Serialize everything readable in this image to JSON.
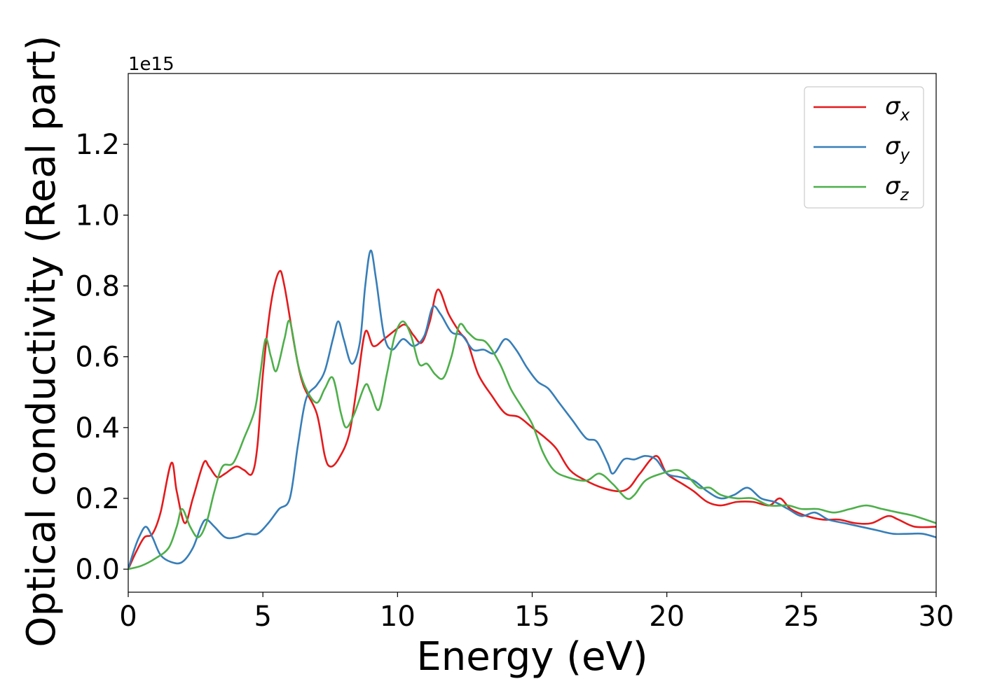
{
  "chart_data": {
    "type": "line",
    "xlabel": "Energy (eV)",
    "ylabel": "Optical conductivity (Real part)",
    "y_offset_label": "1e15",
    "xlim": [
      0,
      30
    ],
    "ylim": [
      -0.065,
      1.4
    ],
    "x_ticks": [
      0,
      5,
      10,
      15,
      20,
      25,
      30
    ],
    "x_tick_labels": [
      "0",
      "5",
      "10",
      "15",
      "20",
      "25",
      "30"
    ],
    "y_ticks": [
      0.0,
      0.2,
      0.4,
      0.6,
      0.8,
      1.0,
      1.2
    ],
    "y_tick_labels": [
      "0.0",
      "0.2",
      "0.4",
      "0.6",
      "0.8",
      "1.0",
      "1.2"
    ],
    "grid": false,
    "legend_position": "top-right",
    "series": [
      {
        "name": "σx",
        "legend_symbol": "σ",
        "legend_subscript": "x",
        "color": "#e41a1c",
        "points": [
          [
            0,
            0
          ],
          [
            0.3,
            0.05
          ],
          [
            0.6,
            0.09
          ],
          [
            0.9,
            0.1
          ],
          [
            1.2,
            0.16
          ],
          [
            1.6,
            0.3
          ],
          [
            1.8,
            0.22
          ],
          [
            2.1,
            0.13
          ],
          [
            2.4,
            0.2
          ],
          [
            2.8,
            0.3
          ],
          [
            3.0,
            0.29
          ],
          [
            3.3,
            0.26
          ],
          [
            3.6,
            0.27
          ],
          [
            4.0,
            0.29
          ],
          [
            4.3,
            0.28
          ],
          [
            4.6,
            0.27
          ],
          [
            4.8,
            0.35
          ],
          [
            5.0,
            0.55
          ],
          [
            5.3,
            0.75
          ],
          [
            5.6,
            0.84
          ],
          [
            5.8,
            0.8
          ],
          [
            6.2,
            0.62
          ],
          [
            6.5,
            0.52
          ],
          [
            7.0,
            0.44
          ],
          [
            7.3,
            0.32
          ],
          [
            7.5,
            0.29
          ],
          [
            7.8,
            0.31
          ],
          [
            8.2,
            0.38
          ],
          [
            8.5,
            0.52
          ],
          [
            8.8,
            0.67
          ],
          [
            9.1,
            0.63
          ],
          [
            9.5,
            0.65
          ],
          [
            10.0,
            0.68
          ],
          [
            10.3,
            0.69
          ],
          [
            10.6,
            0.66
          ],
          [
            10.9,
            0.64
          ],
          [
            11.2,
            0.7
          ],
          [
            11.5,
            0.79
          ],
          [
            11.9,
            0.72
          ],
          [
            12.3,
            0.67
          ],
          [
            12.6,
            0.64
          ],
          [
            13.0,
            0.55
          ],
          [
            13.5,
            0.49
          ],
          [
            14.0,
            0.44
          ],
          [
            14.5,
            0.43
          ],
          [
            15.0,
            0.4
          ],
          [
            15.5,
            0.37
          ],
          [
            15.9,
            0.34
          ],
          [
            16.4,
            0.28
          ],
          [
            17.0,
            0.25
          ],
          [
            17.6,
            0.23
          ],
          [
            18.2,
            0.22
          ],
          [
            18.6,
            0.23
          ],
          [
            19.0,
            0.27
          ],
          [
            19.6,
            0.32
          ],
          [
            20.0,
            0.27
          ],
          [
            20.6,
            0.24
          ],
          [
            21.0,
            0.22
          ],
          [
            21.5,
            0.19
          ],
          [
            22.0,
            0.18
          ],
          [
            22.6,
            0.19
          ],
          [
            23.2,
            0.19
          ],
          [
            23.8,
            0.18
          ],
          [
            24.2,
            0.2
          ],
          [
            24.6,
            0.17
          ],
          [
            25.2,
            0.15
          ],
          [
            25.8,
            0.14
          ],
          [
            26.4,
            0.14
          ],
          [
            27.0,
            0.13
          ],
          [
            27.6,
            0.13
          ],
          [
            28.2,
            0.15
          ],
          [
            28.6,
            0.14
          ],
          [
            29.2,
            0.12
          ],
          [
            30.0,
            0.12
          ]
        ]
      },
      {
        "name": "σy",
        "legend_symbol": "σ",
        "legend_subscript": "y",
        "color": "#377eb8",
        "points": [
          [
            0,
            0
          ],
          [
            0.2,
            0.05
          ],
          [
            0.4,
            0.09
          ],
          [
            0.65,
            0.12
          ],
          [
            0.9,
            0.09
          ],
          [
            1.2,
            0.04
          ],
          [
            1.6,
            0.02
          ],
          [
            2.0,
            0.02
          ],
          [
            2.4,
            0.06
          ],
          [
            2.7,
            0.12
          ],
          [
            2.9,
            0.14
          ],
          [
            3.2,
            0.12
          ],
          [
            3.6,
            0.09
          ],
          [
            4.0,
            0.09
          ],
          [
            4.4,
            0.1
          ],
          [
            4.8,
            0.1
          ],
          [
            5.2,
            0.13
          ],
          [
            5.6,
            0.17
          ],
          [
            6.0,
            0.2
          ],
          [
            6.3,
            0.35
          ],
          [
            6.6,
            0.48
          ],
          [
            7.0,
            0.52
          ],
          [
            7.3,
            0.56
          ],
          [
            7.6,
            0.65
          ],
          [
            7.8,
            0.7
          ],
          [
            8.0,
            0.65
          ],
          [
            8.3,
            0.58
          ],
          [
            8.6,
            0.64
          ],
          [
            8.8,
            0.8
          ],
          [
            9.0,
            0.9
          ],
          [
            9.2,
            0.82
          ],
          [
            9.5,
            0.66
          ],
          [
            9.8,
            0.62
          ],
          [
            10.2,
            0.65
          ],
          [
            10.6,
            0.63
          ],
          [
            11.0,
            0.66
          ],
          [
            11.3,
            0.74
          ],
          [
            11.6,
            0.72
          ],
          [
            12.0,
            0.67
          ],
          [
            12.4,
            0.66
          ],
          [
            12.8,
            0.62
          ],
          [
            13.2,
            0.62
          ],
          [
            13.6,
            0.61
          ],
          [
            14.0,
            0.65
          ],
          [
            14.4,
            0.62
          ],
          [
            14.8,
            0.57
          ],
          [
            15.2,
            0.53
          ],
          [
            15.6,
            0.51
          ],
          [
            16.0,
            0.47
          ],
          [
            16.5,
            0.42
          ],
          [
            17.0,
            0.37
          ],
          [
            17.4,
            0.36
          ],
          [
            17.8,
            0.3
          ],
          [
            18.0,
            0.27
          ],
          [
            18.4,
            0.31
          ],
          [
            18.8,
            0.31
          ],
          [
            19.2,
            0.32
          ],
          [
            19.6,
            0.31
          ],
          [
            20.0,
            0.27
          ],
          [
            20.5,
            0.26
          ],
          [
            21.0,
            0.25
          ],
          [
            21.5,
            0.22
          ],
          [
            22.0,
            0.2
          ],
          [
            22.5,
            0.21
          ],
          [
            23.0,
            0.23
          ],
          [
            23.5,
            0.2
          ],
          [
            24.0,
            0.19
          ],
          [
            24.5,
            0.17
          ],
          [
            25.0,
            0.15
          ],
          [
            25.5,
            0.16
          ],
          [
            26.0,
            0.14
          ],
          [
            26.6,
            0.13
          ],
          [
            27.2,
            0.12
          ],
          [
            27.8,
            0.11
          ],
          [
            28.4,
            0.1
          ],
          [
            29.0,
            0.1
          ],
          [
            29.5,
            0.1
          ],
          [
            30.0,
            0.09
          ]
        ]
      },
      {
        "name": "σz",
        "legend_symbol": "σ",
        "legend_subscript": "z",
        "color": "#4daf4a",
        "points": [
          [
            0,
            0
          ],
          [
            0.5,
            0.01
          ],
          [
            1.0,
            0.03
          ],
          [
            1.5,
            0.06
          ],
          [
            1.8,
            0.12
          ],
          [
            2.0,
            0.17
          ],
          [
            2.3,
            0.12
          ],
          [
            2.6,
            0.09
          ],
          [
            2.9,
            0.13
          ],
          [
            3.2,
            0.22
          ],
          [
            3.5,
            0.29
          ],
          [
            3.9,
            0.3
          ],
          [
            4.3,
            0.37
          ],
          [
            4.7,
            0.45
          ],
          [
            4.9,
            0.55
          ],
          [
            5.1,
            0.65
          ],
          [
            5.3,
            0.6
          ],
          [
            5.5,
            0.56
          ],
          [
            5.8,
            0.65
          ],
          [
            6.0,
            0.7
          ],
          [
            6.3,
            0.58
          ],
          [
            6.6,
            0.51
          ],
          [
            7.0,
            0.47
          ],
          [
            7.3,
            0.51
          ],
          [
            7.6,
            0.54
          ],
          [
            7.9,
            0.44
          ],
          [
            8.1,
            0.4
          ],
          [
            8.4,
            0.44
          ],
          [
            8.8,
            0.52
          ],
          [
            9.0,
            0.5
          ],
          [
            9.3,
            0.45
          ],
          [
            9.6,
            0.55
          ],
          [
            9.9,
            0.66
          ],
          [
            10.2,
            0.7
          ],
          [
            10.5,
            0.66
          ],
          [
            10.8,
            0.58
          ],
          [
            11.1,
            0.58
          ],
          [
            11.4,
            0.55
          ],
          [
            11.7,
            0.54
          ],
          [
            12.0,
            0.6
          ],
          [
            12.3,
            0.69
          ],
          [
            12.6,
            0.67
          ],
          [
            12.9,
            0.65
          ],
          [
            13.3,
            0.64
          ],
          [
            13.8,
            0.58
          ],
          [
            14.2,
            0.51
          ],
          [
            14.6,
            0.46
          ],
          [
            15.0,
            0.41
          ],
          [
            15.4,
            0.33
          ],
          [
            15.8,
            0.28
          ],
          [
            16.3,
            0.26
          ],
          [
            17.0,
            0.25
          ],
          [
            17.5,
            0.27
          ],
          [
            18.0,
            0.24
          ],
          [
            18.5,
            0.2
          ],
          [
            18.8,
            0.21
          ],
          [
            19.2,
            0.25
          ],
          [
            19.8,
            0.27
          ],
          [
            20.4,
            0.28
          ],
          [
            20.8,
            0.26
          ],
          [
            21.2,
            0.23
          ],
          [
            21.6,
            0.23
          ],
          [
            22.0,
            0.21
          ],
          [
            22.6,
            0.2
          ],
          [
            23.2,
            0.2
          ],
          [
            23.8,
            0.18
          ],
          [
            24.5,
            0.18
          ],
          [
            25.0,
            0.17
          ],
          [
            25.6,
            0.17
          ],
          [
            26.2,
            0.16
          ],
          [
            26.8,
            0.17
          ],
          [
            27.4,
            0.18
          ],
          [
            28.0,
            0.17
          ],
          [
            28.6,
            0.16
          ],
          [
            29.2,
            0.15
          ],
          [
            30.0,
            0.13
          ]
        ]
      }
    ]
  }
}
